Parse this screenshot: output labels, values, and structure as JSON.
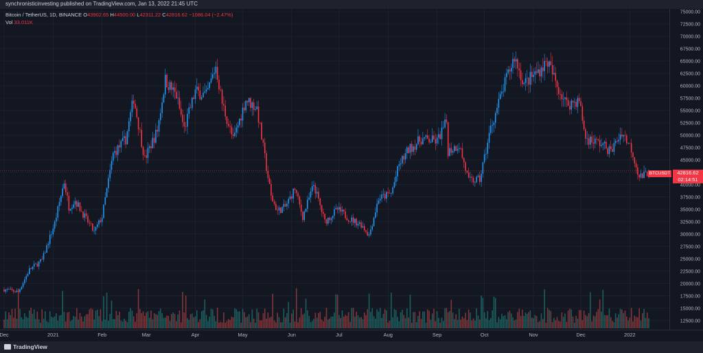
{
  "header": {
    "published": "synchronisticinvesting published on TradingView.com, Jan 13, 2022 21:45 UTC"
  },
  "legend": {
    "symbol": "Bitcoin / TetherUS, 1D, BINANCE",
    "o_label": "O",
    "o_value": "43902.65",
    "h_label": "H",
    "h_value": "44500.00",
    "l_label": "L",
    "l_value": "42311.22",
    "c_label": "C",
    "c_value": "42816.62",
    "change": "−1086.04 (−2.47%)",
    "vol_label": "Vol",
    "vol_value": "33.011K"
  },
  "price_tag": {
    "price": "42816.62",
    "countdown": "02:14:51",
    "symbol": "BTCUSDT"
  },
  "footer": {
    "logo": "TradingView"
  },
  "colors": {
    "up": "#2196f3",
    "down": "#f23645",
    "vol_up": "#26a69a",
    "vol_down": "#ef5350",
    "background": "#131722",
    "grid": "#2a2e39",
    "axis_text": "#b2b5be"
  },
  "chart_data": {
    "type": "candlestick",
    "symbol": "BTCUSDT",
    "interval": "1D",
    "x": {
      "start": "2020-12-01",
      "end": "2022-01-13",
      "tick_labels": [
        "Dec",
        "2021",
        "Feb",
        "Mar",
        "Apr",
        "May",
        "Jun",
        "Jul",
        "Aug",
        "Sep",
        "Oct",
        "Nov",
        "Dec",
        "2022"
      ],
      "tick_dates": [
        "2020-12-01",
        "2021-01-01",
        "2021-02-01",
        "2021-03-01",
        "2021-04-01",
        "2021-05-01",
        "2021-06-01",
        "2021-07-01",
        "2021-08-01",
        "2021-09-01",
        "2021-10-01",
        "2021-11-01",
        "2021-12-01",
        "2022-01-01"
      ]
    },
    "y": {
      "range": [
        11500,
        75000
      ],
      "tick_labels": [
        "75000.00",
        "72500.00",
        "70000.00",
        "67500.00",
        "65000.00",
        "62500.00",
        "60000.00",
        "57500.00",
        "55000.00",
        "52500.00",
        "50000.00",
        "47500.00",
        "45000.00",
        "42500.00",
        "40000.00",
        "37500.00",
        "35000.00",
        "32500.00",
        "30000.00",
        "27500.00",
        "25000.00",
        "22500.00",
        "20000.00",
        "17500.00",
        "15000.00",
        "12500.00"
      ],
      "tick_values": [
        75000,
        72500,
        70000,
        67500,
        65000,
        62500,
        60000,
        57500,
        55000,
        52500,
        50000,
        47500,
        45000,
        42500,
        40000,
        37500,
        35000,
        32500,
        30000,
        27500,
        25000,
        22500,
        20000,
        17500,
        15000,
        12500
      ]
    },
    "current_price": 42816.62,
    "closes": [
      [
        "2020-12-01",
        18800
      ],
      [
        "2020-12-10",
        18300
      ],
      [
        "2020-12-17",
        22800
      ],
      [
        "2020-12-25",
        24700
      ],
      [
        "2021-01-02",
        32200
      ],
      [
        "2021-01-08",
        40600
      ],
      [
        "2021-01-11",
        35500
      ],
      [
        "2021-01-15",
        36800
      ],
      [
        "2021-01-22",
        33000
      ],
      [
        "2021-01-27",
        30400
      ],
      [
        "2021-02-01",
        33500
      ],
      [
        "2021-02-08",
        46200
      ],
      [
        "2021-02-16",
        49200
      ],
      [
        "2021-02-21",
        57500
      ],
      [
        "2021-02-28",
        45200
      ],
      [
        "2021-03-08",
        51000
      ],
      [
        "2021-03-13",
        61200
      ],
      [
        "2021-03-20",
        58000
      ],
      [
        "2021-03-25",
        51300
      ],
      [
        "2021-04-01",
        58900
      ],
      [
        "2021-04-08",
        58000
      ],
      [
        "2021-04-14",
        64000
      ],
      [
        "2021-04-18",
        56500
      ],
      [
        "2021-04-25",
        49000
      ],
      [
        "2021-05-03",
        57200
      ],
      [
        "2021-05-10",
        55500
      ],
      [
        "2021-05-13",
        49500
      ],
      [
        "2021-05-19",
        37500
      ],
      [
        "2021-05-23",
        34700
      ],
      [
        "2021-05-28",
        35500
      ],
      [
        "2021-06-03",
        39200
      ],
      [
        "2021-06-08",
        33500
      ],
      [
        "2021-06-15",
        40000
      ],
      [
        "2021-06-22",
        32500
      ],
      [
        "2021-06-30",
        35000
      ],
      [
        "2021-07-08",
        33000
      ],
      [
        "2021-07-15",
        32000
      ],
      [
        "2021-07-20",
        29800
      ],
      [
        "2021-07-26",
        37200
      ],
      [
        "2021-08-03",
        38200
      ],
      [
        "2021-08-08",
        44000
      ],
      [
        "2021-08-14",
        47100
      ],
      [
        "2021-08-22",
        49200
      ],
      [
        "2021-09-01",
        48800
      ],
      [
        "2021-09-07",
        52700
      ],
      [
        "2021-09-08",
        46800
      ],
      [
        "2021-09-15",
        48100
      ],
      [
        "2021-09-21",
        40700
      ],
      [
        "2021-09-28",
        41000
      ],
      [
        "2021-10-05",
        51500
      ],
      [
        "2021-10-15",
        61500
      ],
      [
        "2021-10-20",
        65900
      ],
      [
        "2021-10-26",
        60400
      ],
      [
        "2021-11-03",
        62700
      ],
      [
        "2021-11-10",
        64900
      ],
      [
        "2021-11-16",
        60000
      ],
      [
        "2021-11-22",
        56300
      ],
      [
        "2021-11-30",
        57000
      ],
      [
        "2021-12-04",
        49400
      ],
      [
        "2021-12-14",
        48300
      ],
      [
        "2021-12-20",
        46700
      ],
      [
        "2021-12-27",
        50700
      ],
      [
        "2022-01-02",
        47300
      ],
      [
        "2022-01-07",
        41600
      ],
      [
        "2022-01-10",
        41800
      ],
      [
        "2022-01-13",
        42817
      ]
    ]
  }
}
